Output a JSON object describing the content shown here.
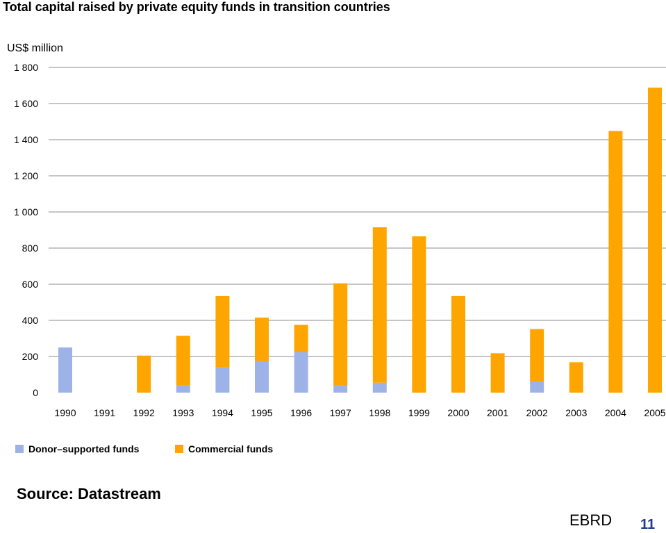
{
  "chart_data": {
    "type": "bar",
    "stacked": true,
    "title": "Total capital raised by private equity funds in transition countries",
    "ylabel": "US$ million",
    "xlabel": "",
    "ylim": [
      0,
      1800
    ],
    "yticks": [
      "0",
      "200",
      "400",
      "600",
      "800",
      "1 000",
      "1 200",
      "1 400",
      "1 600",
      "1 800"
    ],
    "grid": true,
    "legend": "bottom-left",
    "categories": [
      "1990",
      "1991",
      "1992",
      "1993",
      "1994",
      "1995",
      "1996",
      "1997",
      "1998",
      "1999",
      "2000",
      "2001",
      "2002",
      "2003",
      "2004",
      "2005"
    ],
    "series": [
      {
        "name": "Donor–supported funds",
        "color": "#9db3e8",
        "values": [
          250,
          0,
          0,
          40,
          140,
          175,
          225,
          40,
          55,
          0,
          0,
          0,
          60,
          0,
          0,
          0
        ]
      },
      {
        "name": "Commercial funds",
        "color": "#ffa500",
        "values": [
          0,
          0,
          205,
          275,
          395,
          240,
          150,
          565,
          860,
          865,
          535,
          218,
          292,
          168,
          1448,
          1688
        ]
      }
    ]
  },
  "footer": {
    "source": "Source: Datastream",
    "brand": "EBRD",
    "page_number": "11"
  }
}
